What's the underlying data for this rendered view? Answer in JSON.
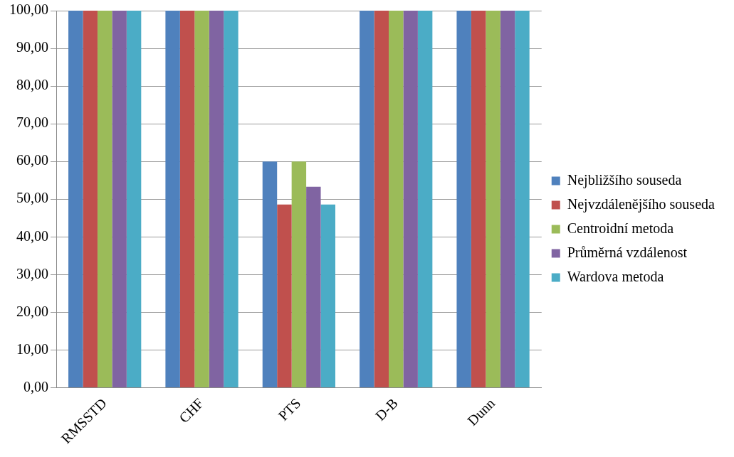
{
  "chart_data": {
    "type": "bar",
    "categories": [
      "RMSSTD",
      "CHF",
      "PTS",
      "D-B",
      "Dunn"
    ],
    "series": [
      {
        "name": "Nejbližšího souseda",
        "color": "#4f81bd",
        "values": [
          100,
          100,
          60,
          100,
          100
        ]
      },
      {
        "name": "Nejvzdálenějšího souseda",
        "color": "#c0504d",
        "values": [
          100,
          100,
          48.6,
          100,
          100
        ]
      },
      {
        "name": "Centroidní metoda",
        "color": "#9bbb59",
        "values": [
          100,
          100,
          60,
          100,
          100
        ]
      },
      {
        "name": "Průměrná vzdálenost",
        "color": "#8064a2",
        "values": [
          100,
          100,
          53.3,
          100,
          100
        ]
      },
      {
        "name": "Wardova metoda",
        "color": "#4bacc6",
        "values": [
          100,
          100,
          48.6,
          100,
          100
        ]
      }
    ],
    "ylim": [
      0,
      100
    ],
    "yticks": [
      {
        "value": 0,
        "label": "0,00"
      },
      {
        "value": 10,
        "label": "10,00"
      },
      {
        "value": 20,
        "label": "20,00"
      },
      {
        "value": 30,
        "label": "30,00"
      },
      {
        "value": 40,
        "label": "40,00"
      },
      {
        "value": 50,
        "label": "50,00"
      },
      {
        "value": 60,
        "label": "60,00"
      },
      {
        "value": 70,
        "label": "70,00"
      },
      {
        "value": 80,
        "label": "80,00"
      },
      {
        "value": 90,
        "label": "90,00"
      },
      {
        "value": 100,
        "label": "100,00"
      }
    ],
    "grid": "y",
    "legend": "right"
  }
}
